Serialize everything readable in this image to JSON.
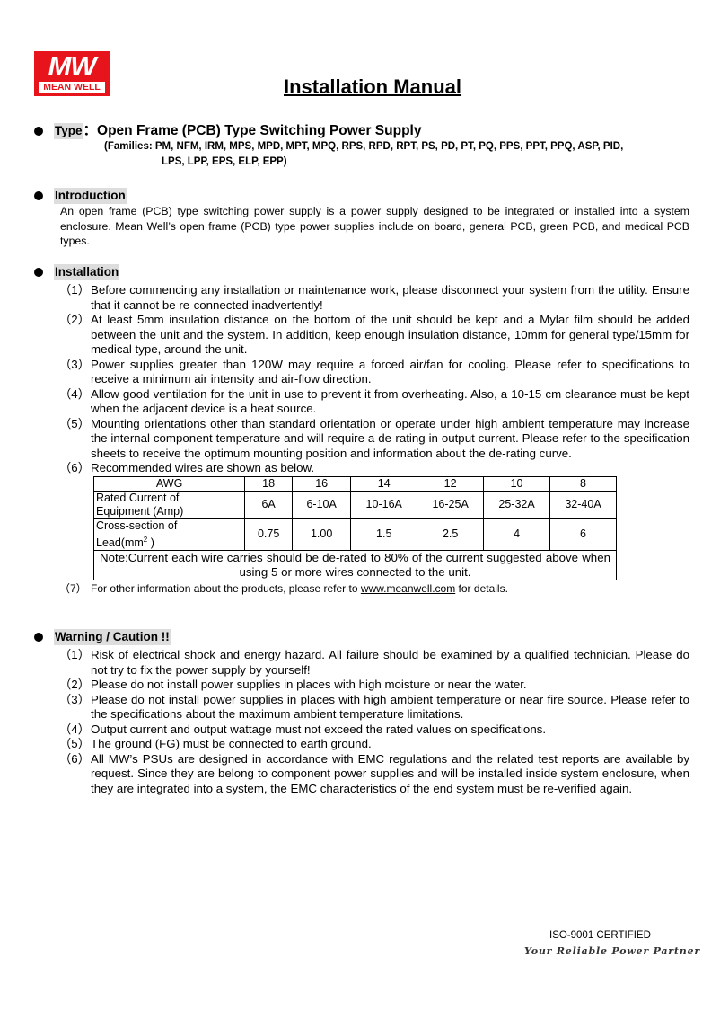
{
  "logo": {
    "mark": "MW",
    "name": "MEAN WELL"
  },
  "title": "Installation Manual",
  "type": {
    "label": "Type",
    "sep": "：",
    "value": "Open Frame (PCB) Type Switching Power Supply",
    "families_1": "(Families: PM, NFM, IRM, MPS, MPD, MPT, MPQ, RPS, RPD, RPT, PS, PD, PT, PQ, PPS, PPT, PPQ, ASP, PID,",
    "families_2": "LPS, LPP, EPS, ELP, EPP)"
  },
  "introduction": {
    "heading": "Introduction",
    "text": "An open frame (PCB) type switching power supply is a power supply designed to be integrated or installed into a system enclosure. Mean Well’s open frame (PCB) type power supplies include on board, general PCB, green PCB, and medical PCB types."
  },
  "installation": {
    "heading": "Installation",
    "items": [
      {
        "n": "（1）",
        "text": "Before commencing any installation or maintenance work, please disconnect your system from the utility. Ensure that it cannot be re-connected inadvertently!"
      },
      {
        "n": "（2）",
        "text": "At least 5mm insulation distance on the bottom of the unit should be kept and a Mylar film should be added between the unit and the system. In addition, keep enough insulation distance, 10mm for general type/15mm for medical type, around the unit."
      },
      {
        "n": "（3）",
        "text": "Power supplies greater than 120W may require a forced air/fan for cooling. Please refer to specifications to receive a minimum air intensity and air-flow direction."
      },
      {
        "n": "（4）",
        "text": "Allow good ventilation for the unit in use to prevent it from overheating. Also, a 10-15 cm clearance must be kept when the adjacent device is a heat source."
      },
      {
        "n": "（5）",
        "text": "Mounting orientations other than standard orientation or operate under high ambient temperature may increase the internal component temperature and will require a de-rating in output current. Please refer to the specification sheets to receive the optimum mounting position and information about the de-rating curve."
      },
      {
        "n": "（6）",
        "text": "Recommended wires are shown as below."
      }
    ],
    "item7": {
      "n": "（7）",
      "before": "For other information about the products, please refer to ",
      "link": "www.meanwell.com",
      "after": " for details."
    }
  },
  "wire_table": {
    "header": [
      "AWG",
      "18",
      "16",
      "14",
      "12",
      "10",
      "8"
    ],
    "rows": [
      {
        "label_1": "Rated Current of",
        "label_2": "Equipment (Amp)",
        "values": [
          "6A",
          "6-10A",
          "10-16A",
          "16-25A",
          "25-32A",
          "32-40A"
        ]
      },
      {
        "label_1": "Cross-section of",
        "label_2": "Lead(mm",
        "sup": "2",
        "label_end": " )",
        "values": [
          "0.75",
          "1.00",
          "1.5",
          "2.5",
          "4",
          "6"
        ]
      }
    ],
    "note": "Note:Current each wire carries should be de-rated to 80% of the current suggested above when using 5 or more wires connected to the unit."
  },
  "warning": {
    "heading": "Warning / Caution !!",
    "items": [
      {
        "n": "（1）",
        "text": "Risk of electrical shock and energy hazard. All failure should be examined by a qualified technician. Please do not try to fix the power supply by yourself!"
      },
      {
        "n": "（2）",
        "text": "Please do not install power supplies in places with high moisture or near the water."
      },
      {
        "n": "（3）",
        "text": "Please do not install power supplies in places with high ambient temperature or near fire source. Please refer to the specifications about the maximum ambient temperature limitations."
      },
      {
        "n": "（4）",
        "text": "Output current and output wattage must not exceed the rated values on specifications."
      },
      {
        "n": "（5）",
        "text": "The ground (FG) must be connected to earth ground."
      },
      {
        "n": "（6）",
        "text": "All MW’s PSUs are designed in accordance with EMC regulations and the related test reports are available by request. Since they are belong to component power supplies and will be installed inside system enclosure, when they are integrated into a system, the EMC characteristics of the end system must be re-verified again."
      }
    ]
  },
  "footer": {
    "iso": "ISO-9001 CERTIFIED",
    "slogan": "Your Reliable Power Partner"
  },
  "colors": {
    "brand": "#e8141b",
    "heading_bg": "#dddddd"
  }
}
